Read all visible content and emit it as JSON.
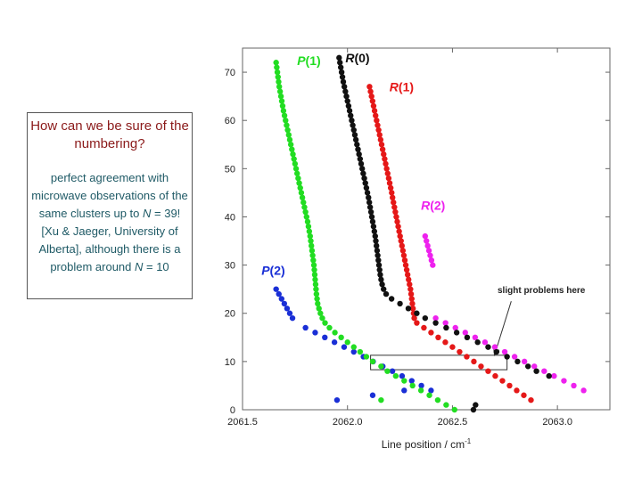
{
  "callout": {
    "question": "How can we be sure of the numbering?",
    "body_1": "perfect agreement with microwave observations of the same clusters up to ",
    "body_n": "N",
    "body_2": " = 39! [Xu & Jaeger, University of Alberta], although there is a problem around ",
    "body_n2": "N",
    "body_3": " = 10"
  },
  "chart_data": {
    "type": "scatter",
    "xlabel": "Line position / cm",
    "xlabel_sup": "-1",
    "ylabel": "",
    "xlim": [
      2061.5,
      2063.25
    ],
    "ylim": [
      0,
      75
    ],
    "xticks": [
      2061.5,
      2062.0,
      2062.5,
      2063.0
    ],
    "xtick_labels": [
      "2061.5",
      "2062.0",
      "2062.5",
      "2063.0"
    ],
    "yticks": [
      0,
      10,
      20,
      30,
      40,
      50,
      60,
      70
    ],
    "ytick_labels": [
      "0",
      "10",
      "20",
      "30",
      "40",
      "50",
      "60",
      "70"
    ],
    "annotation": {
      "text": "slight problems here",
      "box_x": [
        2062.11,
        2062.76
      ],
      "box_y": [
        8.3,
        11.3
      ],
      "arrow_to": [
        2062.7,
        11.3
      ],
      "arrow_from": [
        2062.78,
        22.5
      ]
    },
    "series": [
      {
        "name": "P(1)",
        "label_parts": [
          "P",
          "(1)"
        ],
        "color": "#22dd22",
        "label_at": [
          2061.76,
          71.5
        ],
        "x": [
          2061.66,
          2061.663,
          2061.666,
          2061.669,
          2061.672,
          2061.675,
          2061.679,
          2061.683,
          2061.687,
          2061.691,
          2061.695,
          2061.7,
          2061.705,
          2061.71,
          2061.715,
          2061.72,
          2061.725,
          2061.73,
          2061.735,
          2061.74,
          2061.745,
          2061.75,
          2061.755,
          2061.76,
          2061.765,
          2061.77,
          2061.775,
          2061.78,
          2061.785,
          2061.79,
          2061.795,
          2061.8,
          2061.805,
          2061.81,
          2061.814,
          2061.818,
          2061.822,
          2061.825,
          2061.828,
          2061.831,
          2061.834,
          2061.837,
          2061.84,
          2061.842,
          2061.844,
          2061.846,
          2061.848,
          2061.85,
          2061.852,
          2061.855,
          2061.858,
          2061.864,
          2061.871,
          2061.88,
          2061.893,
          2061.914,
          2061.94,
          2061.97,
          2062.0,
          2062.03,
          2062.06,
          2062.09,
          2062.12,
          2062.16,
          2062.19,
          2062.23,
          2062.27,
          2062.31,
          2062.35,
          2062.39,
          2062.43,
          2062.47,
          2062.51,
          2062.56,
          2062.61,
          2062.16
        ],
        "y": [
          72,
          71,
          70,
          69,
          68,
          67,
          66,
          65,
          64,
          63,
          62,
          61,
          60,
          59,
          58,
          57,
          56,
          55,
          54,
          53,
          52,
          51,
          50,
          49,
          48,
          47,
          46,
          45,
          44,
          43,
          42,
          41,
          40,
          39,
          38,
          37,
          36,
          35,
          34,
          33,
          32,
          31,
          30,
          29,
          28,
          27,
          26,
          25,
          24,
          23,
          22,
          21,
          20,
          19,
          18,
          17,
          16,
          15,
          14,
          13,
          12,
          11,
          10,
          9,
          8,
          7,
          6,
          5,
          4,
          3,
          2,
          1,
          0,
          -1,
          -2,
          2
        ]
      },
      {
        "name": "R(0)",
        "label_parts": [
          "R",
          "(0)"
        ],
        "color": "#111111",
        "label_at": [
          2061.99,
          72
        ],
        "x": [
          2061.96,
          2061.964,
          2061.968,
          2061.972,
          2061.976,
          2061.98,
          2061.985,
          2061.99,
          2061.995,
          2062.0,
          2062.005,
          2062.01,
          2062.015,
          2062.02,
          2062.025,
          2062.03,
          2062.035,
          2062.04,
          2062.045,
          2062.05,
          2062.055,
          2062.06,
          2062.065,
          2062.07,
          2062.075,
          2062.08,
          2062.085,
          2062.09,
          2062.095,
          2062.1,
          2062.104,
          2062.108,
          2062.112,
          2062.116,
          2062.12,
          2062.124,
          2062.128,
          2062.132,
          2062.135,
          2062.138,
          2062.141,
          2062.144,
          2062.147,
          2062.15,
          2062.153,
          2062.156,
          2062.16,
          2062.165,
          2062.172,
          2062.184,
          2062.21,
          2062.25,
          2062.29,
          2062.33,
          2062.37,
          2062.42,
          2062.47,
          2062.52,
          2062.57,
          2062.62,
          2062.67,
          2062.71,
          2062.76,
          2062.81,
          2062.86,
          2062.9,
          2062.96,
          2062.61,
          2062.6
        ],
        "y": [
          73,
          72,
          71,
          70,
          69,
          68,
          67,
          66,
          65,
          64,
          63,
          62,
          61,
          60,
          59,
          58,
          57,
          56,
          55,
          54,
          53,
          52,
          51,
          50,
          49,
          48,
          47,
          46,
          45,
          44,
          43,
          42,
          41,
          40,
          39,
          38,
          37,
          36,
          35,
          34,
          33,
          32,
          31,
          30,
          29,
          28,
          27,
          26,
          25,
          24,
          23,
          22,
          21,
          20,
          19,
          18,
          17,
          16,
          15,
          14,
          13,
          12,
          11,
          10,
          9,
          8,
          7,
          1,
          0
        ]
      },
      {
        "name": "R(1)",
        "label_parts": [
          "R",
          "(1)"
        ],
        "color": "#e51818",
        "label_at": [
          2062.2,
          66
        ]
      },
      {
        "name": "R(2)",
        "label_parts": [
          "R",
          "(2)"
        ],
        "color": "#ee22ee",
        "label_at": [
          2062.35,
          41.5
        ]
      },
      {
        "name": "P(2)",
        "label_parts": [
          "P",
          "(2)"
        ],
        "color": "#1a2fd6",
        "label_at": [
          2061.59,
          28
        ]
      }
    ]
  }
}
